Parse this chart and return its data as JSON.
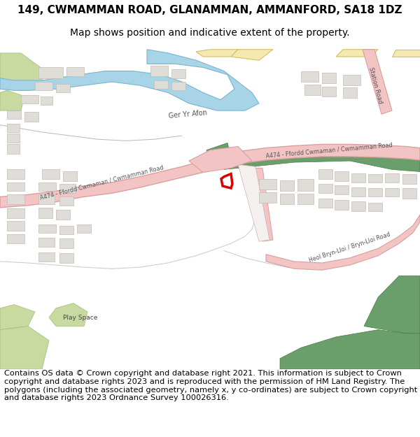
{
  "title_line1": "149, CWMAMMAN ROAD, GLANAMMAN, AMMANFORD, SA18 1DZ",
  "title_line2": "Map shows position and indicative extent of the property.",
  "footer_text": "Contains OS data © Crown copyright and database right 2021. This information is subject to Crown copyright and database rights 2023 and is reproduced with the permission of HM Land Registry. The polygons (including the associated geometry, namely x, y co-ordinates) are subject to Crown copyright and database rights 2023 Ordnance Survey 100026316.",
  "title_fontsize": 11,
  "subtitle_fontsize": 10,
  "footer_fontsize": 8.2,
  "fig_width": 6.0,
  "fig_height": 6.25,
  "bg_color": "#ffffff",
  "map_bg": "#f8f8f8",
  "road_pink": "#f2c4c4",
  "road_pink_edge": "#d8a0a0",
  "road_gray_line": "#b0b0b0",
  "water_blue": "#a8d4e8",
  "green_dark": "#6a9e6a",
  "green_light": "#c8daa0",
  "building_fill": "#e0ddd8",
  "building_edge": "#c0bcb4",
  "road_label_color": "#555555",
  "plot_red": "#dd0000"
}
